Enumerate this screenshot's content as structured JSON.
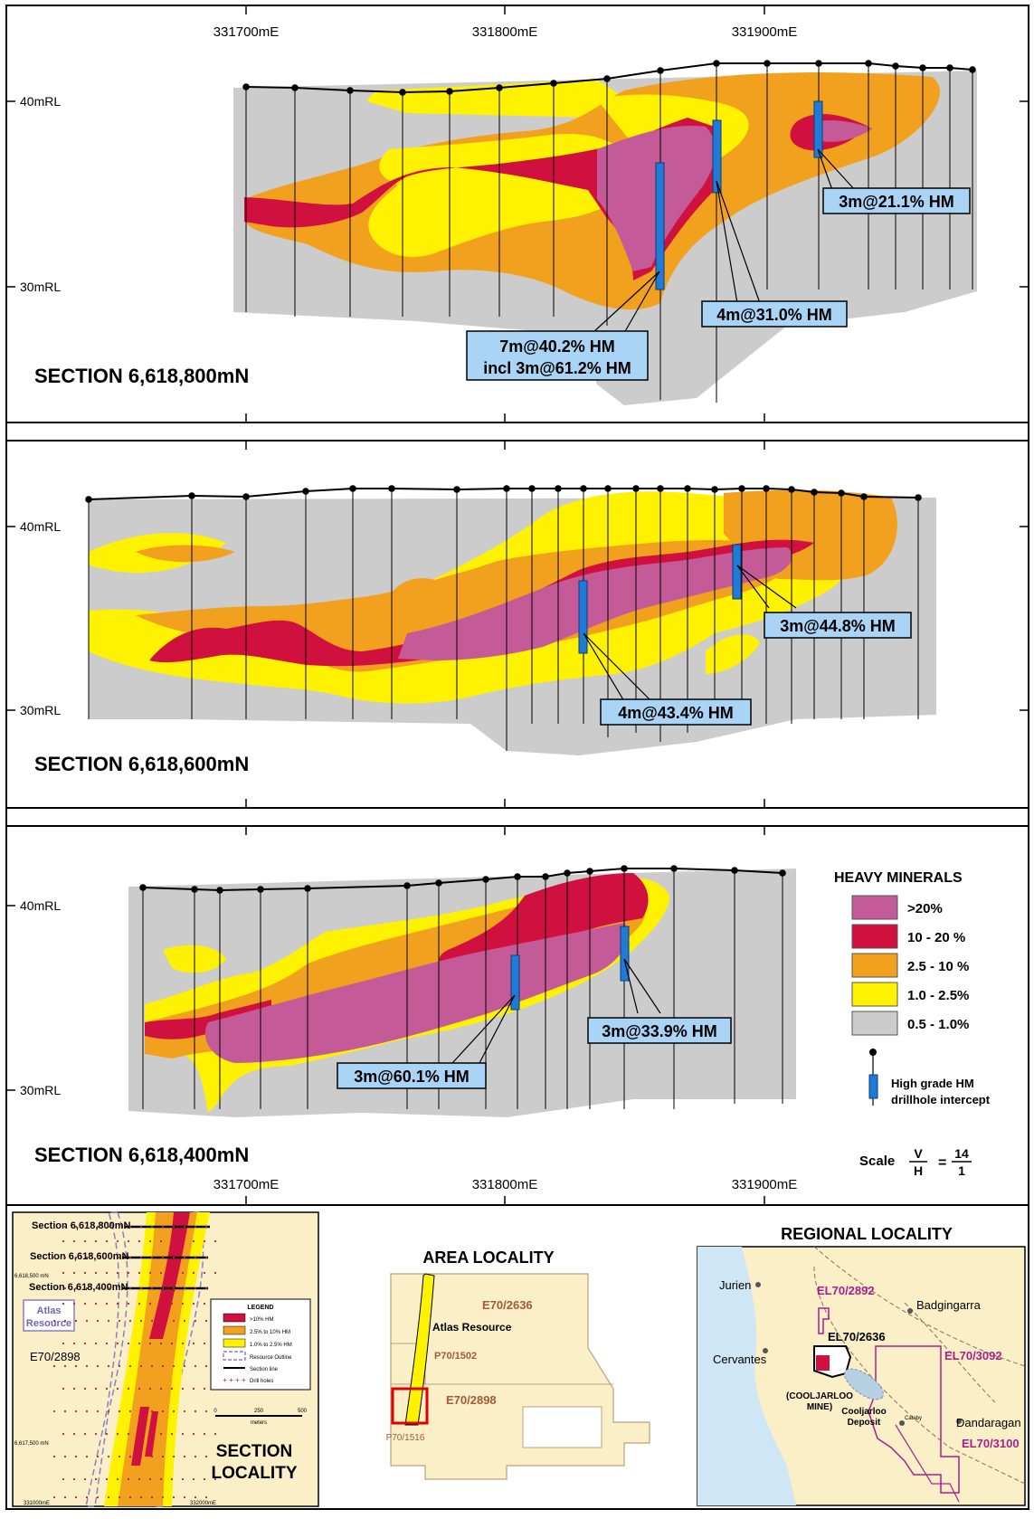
{
  "eastings": [
    "331700mE",
    "331800mE",
    "331900mE"
  ],
  "rl_labels": {
    "top": "40mRL",
    "bottom": "30mRL"
  },
  "sections": [
    {
      "title": "SECTION 6,618,800mN",
      "callouts": [
        "7m@40.2% HM",
        "incl 3m@61.2% HM",
        "4m@31.0% HM",
        "3m@21.1% HM"
      ]
    },
    {
      "title": "SECTION 6,618,600mN",
      "callouts": [
        "3m@44.8% HM",
        "4m@43.4% HM"
      ]
    },
    {
      "title": "SECTION 6,618,400mN",
      "callouts": [
        "3m@33.9% HM",
        "3m@60.1% HM"
      ]
    }
  ],
  "legend": {
    "title": "HEAVY MINERALS",
    "items": [
      {
        "label": ">20%",
        "color": "#c45a97"
      },
      {
        "label": "10 - 20 %",
        "color": "#d0103f"
      },
      {
        "label": "2.5 - 10 %",
        "color": "#f2a11e"
      },
      {
        "label": "1.0 - 2.5%",
        "color": "#fff200"
      },
      {
        "label": "0.5 - 1.0%",
        "color": "#cccccc"
      }
    ],
    "intercept_label_1": "High grade HM",
    "intercept_label_2": "drillhole intercept",
    "scale_label": "Scale",
    "scale_v": "V",
    "scale_h": "H",
    "scale_num": "14",
    "scale_den": "1"
  },
  "section_locality": {
    "labels": [
      "Section 6,618,800mN",
      "Section 6,618,600mN",
      "Section 6,618,400mN"
    ],
    "resource": "Atlas Resource",
    "tenement": "E70/2898",
    "north_labels": [
      "6,618,500 mN",
      "6,617,500 mN"
    ],
    "east_labels": [
      "331000mE",
      "332000mE"
    ],
    "legend_title": "LEGEND",
    "legend_items": [
      ">10% HM",
      "2.5% to 10% HM",
      "1.0% to 2.5% HM",
      "Resource Outline",
      "Section line",
      "Drill holes"
    ],
    "scale_ticks": [
      "0",
      "250",
      "500"
    ],
    "scale_unit": "meters",
    "title_1": "SECTION",
    "title_2": "LOCALITY"
  },
  "area_locality": {
    "title": "AREA LOCALITY",
    "tenements": [
      "E70/2636",
      "P70/1502",
      "E70/2898",
      "P70/1516"
    ],
    "resource": "Atlas Resource"
  },
  "regional_locality": {
    "title": "REGIONAL LOCALITY",
    "towns": [
      "Jurien",
      "Badgingarra",
      "Cervantes",
      "Dandaragan",
      "Cataby"
    ],
    "tenements": [
      "EL70/2892",
      "EL70/2636",
      "EL70/3092",
      "EL70/3100"
    ],
    "mine_1": "(COOLJARLOO",
    "mine_2": "MINE)",
    "deposit_1": "Cooljarloo",
    "deposit_2": "Deposit"
  },
  "colors": {
    "pink": "#c45a97",
    "red": "#d0103f",
    "orange": "#f2a11e",
    "yellow": "#fff200",
    "grey": "#cccccc",
    "callout": "#a9d4f5",
    "intercept": "#1f7bd6"
  }
}
